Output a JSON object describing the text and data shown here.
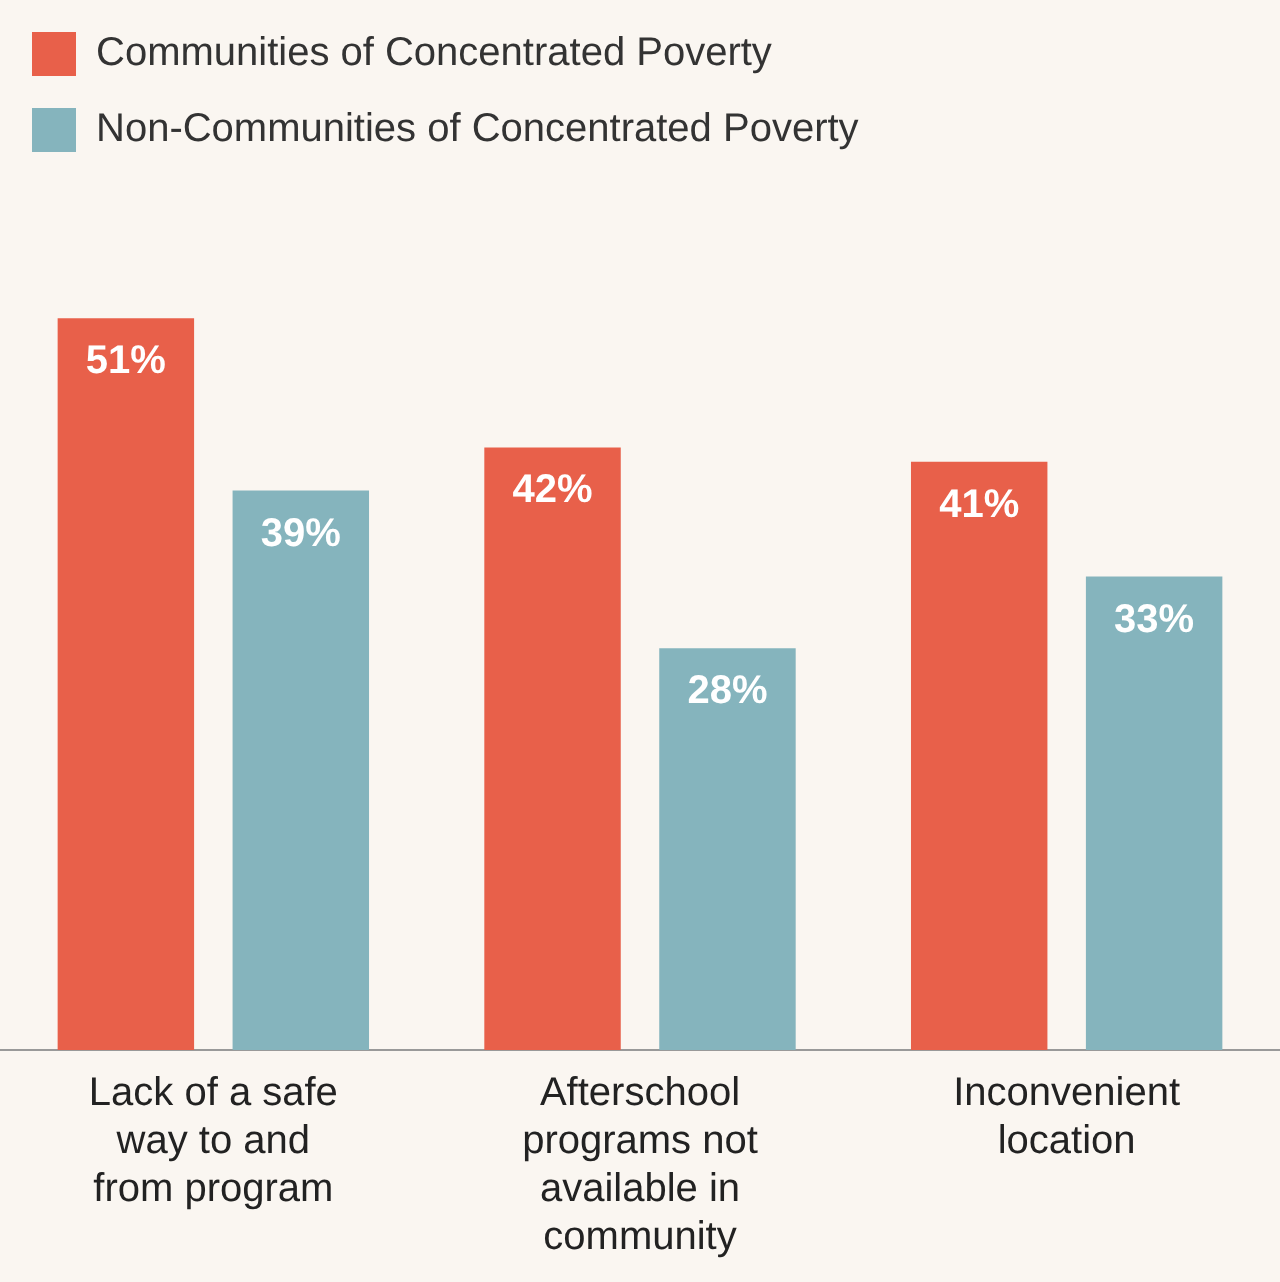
{
  "chart_data": {
    "type": "bar",
    "categories": [
      "Lack of a safe way to and from program",
      "Afterschool programs not available in community",
      "Inconvenient location"
    ],
    "series": [
      {
        "name": "Communities of Concentrated Poverty",
        "color": "#e8604a",
        "values": [
          51,
          42,
          41
        ],
        "value_labels": [
          "51%",
          "42%",
          "41%"
        ]
      },
      {
        "name": "Non-Communities of Concentrated Poverty",
        "color": "#85b4bd",
        "values": [
          39,
          28,
          33
        ],
        "value_labels": [
          "39%",
          "28%",
          "33%"
        ]
      }
    ],
    "legend": "top left",
    "grid": false
  }
}
